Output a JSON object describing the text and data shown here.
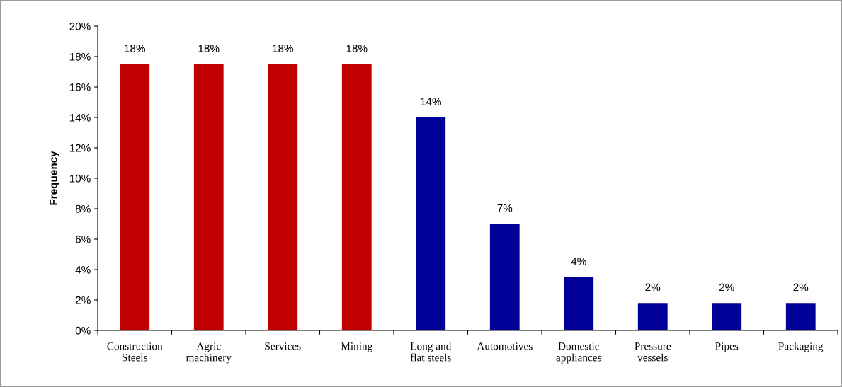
{
  "chart_data": {
    "type": "bar",
    "ylabel": "Frequency",
    "categories": [
      "Construction\nSteels",
      "Agric\nmachinery",
      "Services",
      "Mining",
      "Long and\nflat steels",
      "Automotives",
      "Domestic\nappliances",
      "Pressure\nvessels",
      "Pipes",
      "Packaging"
    ],
    "values": [
      17.5,
      17.5,
      17.5,
      17.5,
      14,
      7,
      3.5,
      1.8,
      1.8,
      1.8
    ],
    "colors": [
      "#c00000",
      "#c00000",
      "#c00000",
      "#c00000",
      "#000099",
      "#000099",
      "#000099",
      "#000099",
      "#000099",
      "#000099"
    ],
    "value_labels": [
      "18%",
      "18%",
      "18%",
      "18%",
      "14%",
      "7%",
      "4%",
      "2%",
      "2%",
      "2%"
    ],
    "ylim": [
      0,
      20
    ],
    "yticks": [
      {
        "value": 0,
        "label": "0%"
      },
      {
        "value": 2,
        "label": "2%"
      },
      {
        "value": 4,
        "label": "4%"
      },
      {
        "value": 6,
        "label": "6%"
      },
      {
        "value": 8,
        "label": "8%"
      },
      {
        "value": 10,
        "label": "10%"
      },
      {
        "value": 12,
        "label": "12%"
      },
      {
        "value": 14,
        "label": "14%"
      },
      {
        "value": 16,
        "label": "16%"
      },
      {
        "value": 18,
        "label": "18%"
      },
      {
        "value": 20,
        "label": "20%"
      }
    ],
    "grid": false
  }
}
